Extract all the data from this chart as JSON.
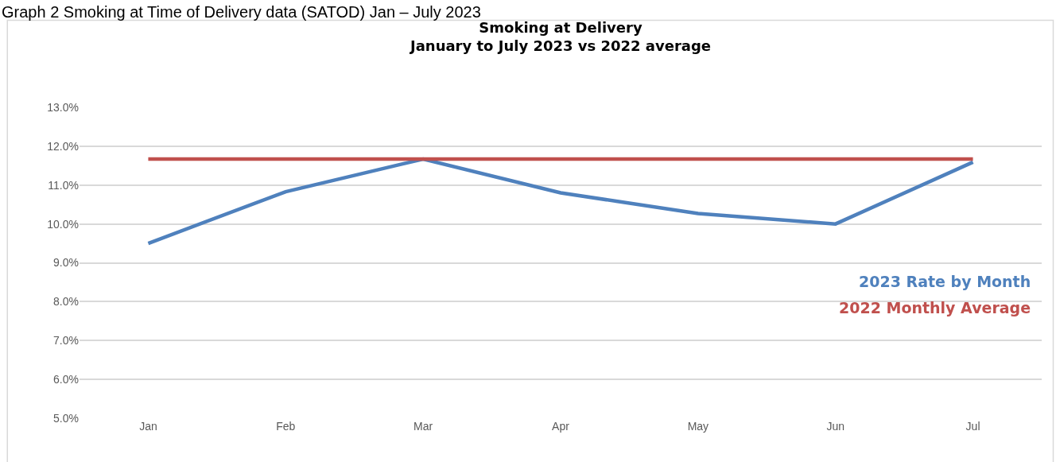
{
  "chart_data": {
    "type": "line",
    "title": "Smoking at Delivery\nJanuary to July 2023 vs 2022 average",
    "annotations": [
      "Graph 2 Smoking at Time of Delivery data (SATOD) Jan – July 2023"
    ],
    "categories": [
      "Jan",
      "Feb",
      "Mar",
      "Apr",
      "May",
      "Jun",
      "Jul"
    ],
    "series": [
      {
        "name": "2023 Rate by Month",
        "color": "#4f81bd",
        "values": [
          9.5,
          10.83,
          11.67,
          10.8,
          10.27,
          10.0,
          11.59
        ]
      },
      {
        "name": "2022 Monthly Average",
        "color": "#c0504d",
        "values": [
          11.67,
          11.67,
          11.67,
          11.67,
          11.67,
          11.67,
          11.67
        ]
      }
    ],
    "ylim": [
      5.0,
      13.0
    ],
    "yticks": [
      {
        "value": 5,
        "label": "5.0%"
      },
      {
        "value": 6,
        "label": "6.0%"
      },
      {
        "value": 7,
        "label": "7.0%"
      },
      {
        "value": 8,
        "label": "8.0%"
      },
      {
        "value": 9,
        "label": "9.0%"
      },
      {
        "value": 10,
        "label": "10.0%"
      },
      {
        "value": 11,
        "label": "11.0%"
      },
      {
        "value": 12,
        "label": "12.0%"
      },
      {
        "value": 13,
        "label": "13.0%"
      }
    ],
    "grid": "y",
    "legend": "right",
    "marker": "none",
    "line_style": "solid"
  }
}
